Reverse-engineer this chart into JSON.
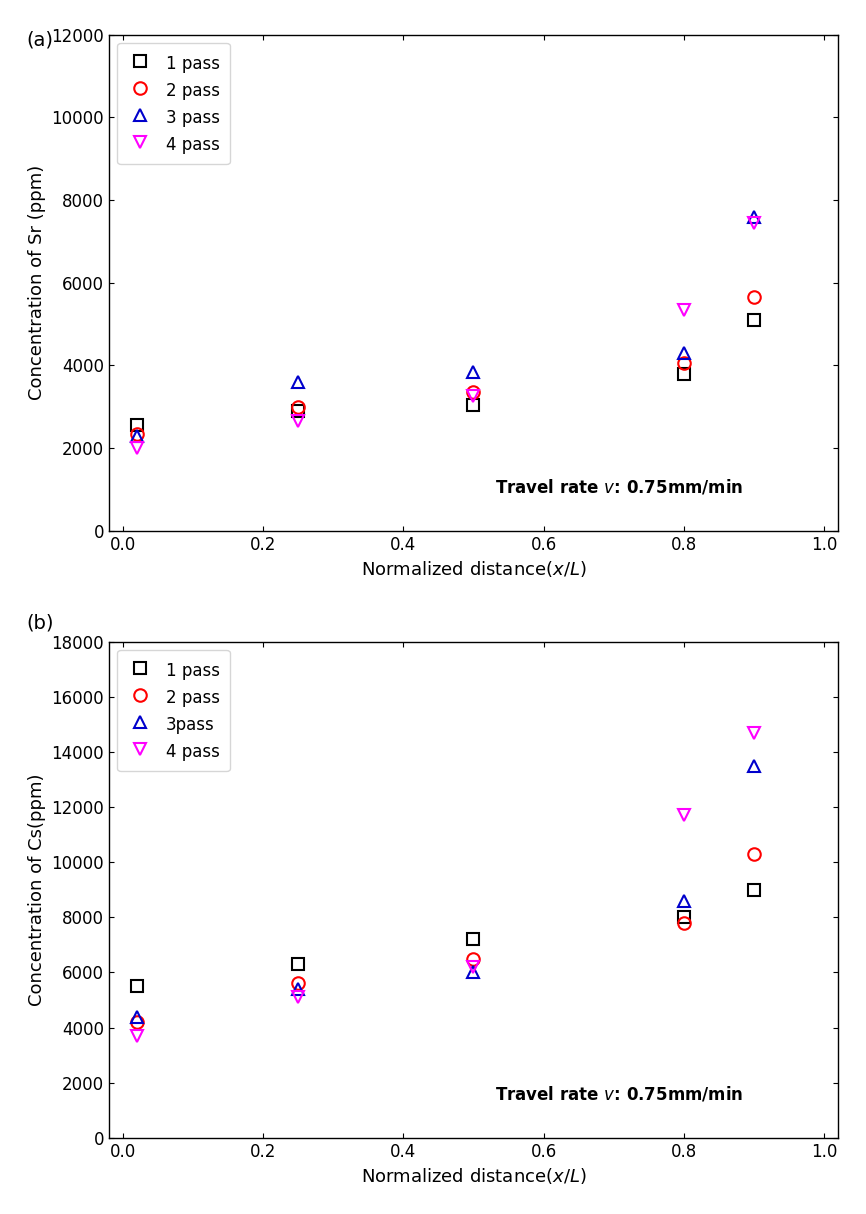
{
  "sr_data": {
    "pass1": {
      "x": [
        0.02,
        0.25,
        0.5,
        0.8,
        0.9
      ],
      "y": [
        2550,
        2900,
        3050,
        3800,
        5100
      ]
    },
    "pass2": {
      "x": [
        0.02,
        0.25,
        0.5,
        0.8,
        0.9
      ],
      "y": [
        2350,
        3000,
        3350,
        4050,
        5650
      ]
    },
    "pass3": {
      "x": [
        0.02,
        0.25,
        0.5,
        0.8,
        0.9
      ],
      "y": [
        2300,
        3600,
        3850,
        4300,
        7600
      ]
    },
    "pass4": {
      "x": [
        0.02,
        0.25,
        0.5,
        0.8,
        0.9
      ],
      "y": [
        2000,
        2650,
        3250,
        5350,
        7450
      ]
    }
  },
  "cs_data": {
    "pass1": {
      "x": [
        0.02,
        0.25,
        0.5,
        0.8,
        0.9
      ],
      "y": [
        5500,
        6300,
        7200,
        8000,
        9000
      ]
    },
    "pass2": {
      "x": [
        0.02,
        0.25,
        0.5,
        0.8,
        0.9
      ],
      "y": [
        4200,
        5600,
        6500,
        7800,
        10300
      ]
    },
    "pass3": {
      "x": [
        0.02,
        0.25,
        0.5,
        0.8,
        0.9
      ],
      "y": [
        4400,
        5400,
        6000,
        8600,
        13500
      ]
    },
    "pass4": {
      "x": [
        0.02,
        0.25,
        0.5,
        0.8,
        0.9
      ],
      "y": [
        3700,
        5100,
        6200,
        11700,
        14700
      ]
    }
  },
  "colors": {
    "pass1": "#000000",
    "pass2": "#ff0000",
    "pass3": "#0000cc",
    "pass4": "#ff00ff"
  },
  "legend_labels_sr": {
    "pass1": "1 pass",
    "pass2": "2 pass",
    "pass3": "3 pass",
    "pass4": "4 pass"
  },
  "legend_labels_cs": {
    "pass1": "1 pass",
    "pass2": "2 pass",
    "pass3": "3pass",
    "pass4": "4 pass"
  },
  "sr_ylabel": "Concentration of Sr (ppm)",
  "cs_ylabel": "Concentration of Cs(ppm)",
  "sr_ylim": [
    0,
    12000
  ],
  "cs_ylim": [
    0,
    18000
  ],
  "xlim": [
    -0.02,
    1.02
  ],
  "label_a": "(a)",
  "label_b": "(b)",
  "bg_color": "#ffffff",
  "marker_size": 9,
  "marker_linewidth": 1.5,
  "sr_yticks": [
    0,
    2000,
    4000,
    6000,
    8000,
    10000,
    12000
  ],
  "cs_yticks": [
    0,
    2000,
    4000,
    6000,
    8000,
    10000,
    12000,
    14000,
    16000,
    18000
  ],
  "xticks": [
    0.0,
    0.2,
    0.4,
    0.6,
    0.8,
    1.0
  ]
}
